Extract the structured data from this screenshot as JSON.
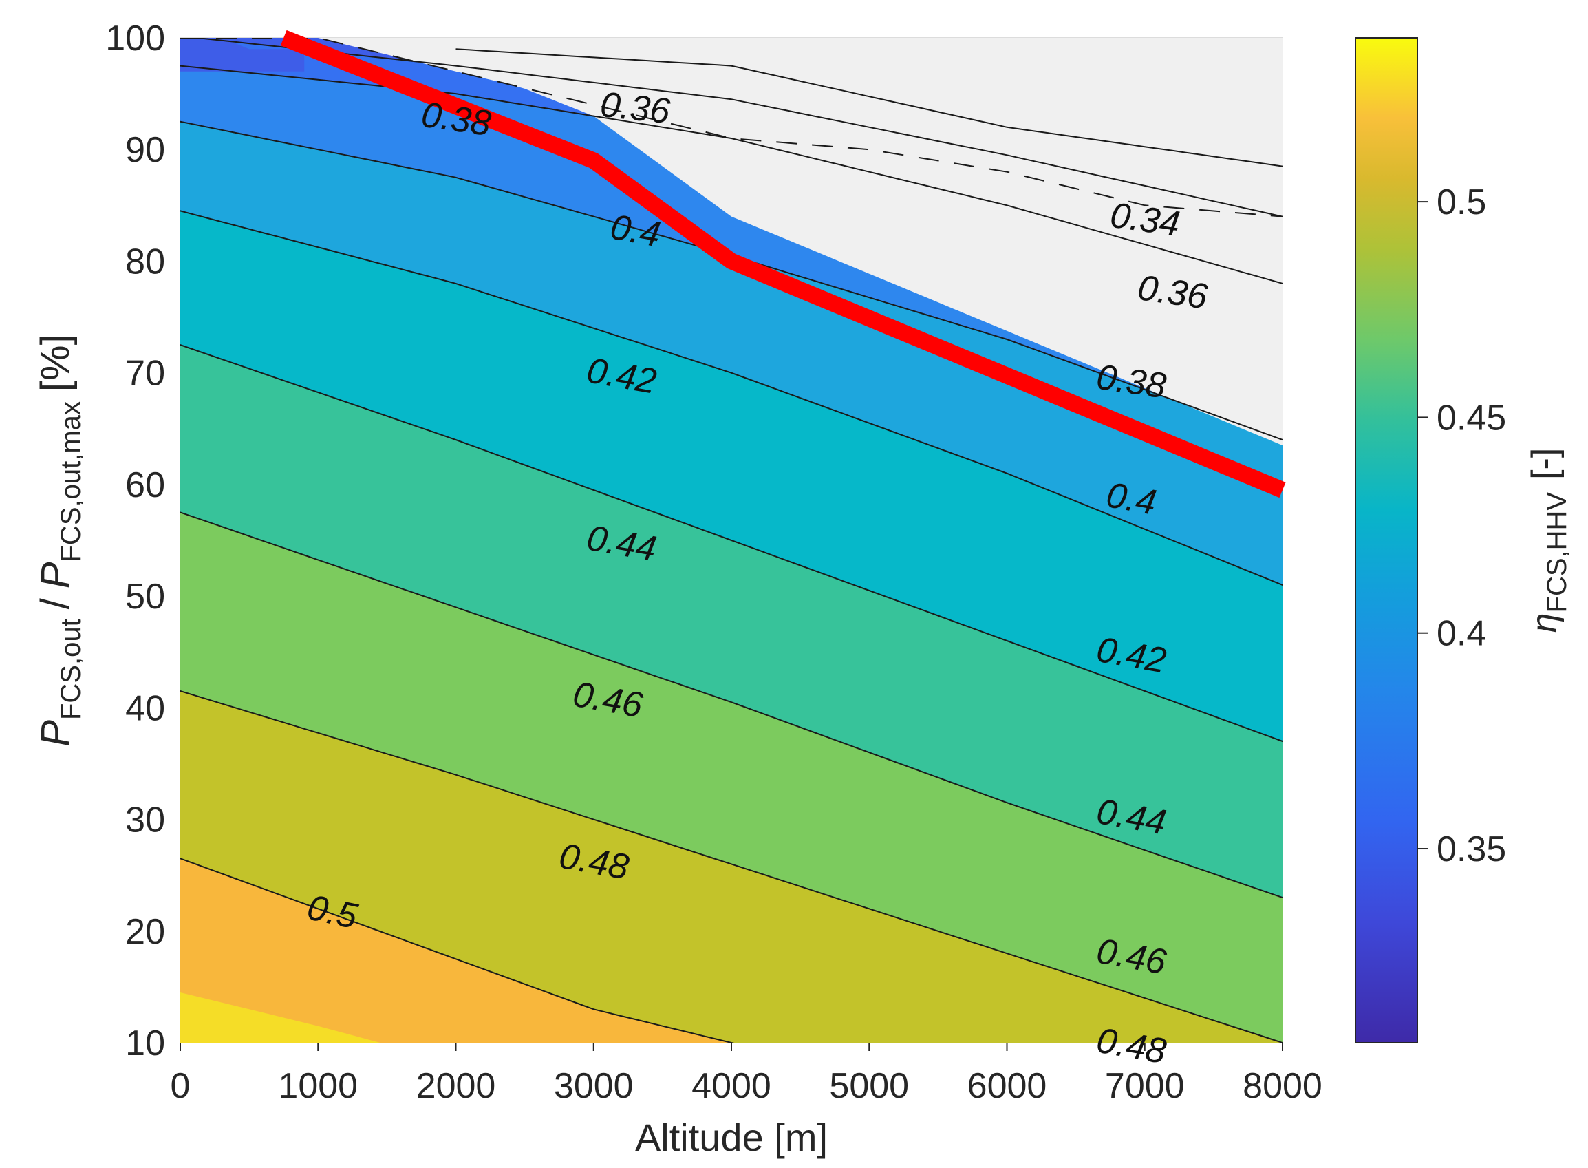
{
  "chart_data": {
    "type": "contour",
    "title": "",
    "xlabel": "Altitude [m]",
    "ylabel": {
      "num_symbol": "P",
      "num_sub": "FCS,out",
      "slash": "/",
      "den_symbol": "P",
      "den_sub": "FCS,out,max",
      "unit": "[%]"
    },
    "xlim": [
      0,
      8000
    ],
    "ylim": [
      10,
      100
    ],
    "x_ticks": [
      "0",
      "1000",
      "2000",
      "3000",
      "4000",
      "5000",
      "6000",
      "7000",
      "8000"
    ],
    "y_ticks": [
      "10",
      "20",
      "30",
      "40",
      "50",
      "60",
      "70",
      "80",
      "90",
      "100"
    ],
    "grid": true,
    "levels": [
      0.34,
      0.36,
      0.38,
      0.4,
      0.42,
      0.44,
      0.46,
      0.48,
      0.5
    ],
    "contour_lines": [
      {
        "level": "0.5",
        "x": [
          0,
          1000,
          2000,
          3000,
          4000
        ],
        "y": [
          26.5,
          22,
          17.5,
          13,
          10
        ]
      },
      {
        "level": "0.48",
        "x": [
          0,
          2000,
          4000,
          6000,
          8000
        ],
        "y": [
          41.5,
          34,
          26,
          18,
          10
        ]
      },
      {
        "level": "0.46",
        "x": [
          0,
          2000,
          4000,
          6000,
          8000
        ],
        "y": [
          57.5,
          49,
          40.5,
          31.5,
          23
        ]
      },
      {
        "level": "0.44",
        "x": [
          0,
          2000,
          4000,
          6000,
          8000
        ],
        "y": [
          72.5,
          64,
          55,
          46,
          37
        ]
      },
      {
        "level": "0.42",
        "x": [
          0,
          2000,
          4000,
          6000,
          8000
        ],
        "y": [
          84.5,
          78,
          70,
          61,
          51
        ]
      },
      {
        "level": "0.4",
        "x": [
          0,
          2000,
          4000,
          6000,
          8000
        ],
        "y": [
          92.5,
          87.5,
          80.5,
          73,
          64
        ]
      },
      {
        "level": "0.38",
        "x": [
          0,
          2000,
          4000,
          6000,
          8000
        ],
        "y": [
          97.5,
          95,
          91,
          85,
          78
        ]
      },
      {
        "level": "0.36",
        "x": [
          500,
          2000,
          4000,
          6000,
          8000
        ],
        "y": [
          99.5,
          97.5,
          94.5,
          89.5,
          84
        ]
      }
    ],
    "contour_labels": [
      {
        "text": "0.5",
        "x": 1100,
        "y": 21.5,
        "angle": 12
      },
      {
        "text": "0.48",
        "x": 3000,
        "y": 26,
        "angle": 10
      },
      {
        "text": "0.46",
        "x": 3100,
        "y": 40.5,
        "angle": 10
      },
      {
        "text": "0.44",
        "x": 3200,
        "y": 54.5,
        "angle": 10
      },
      {
        "text": "0.42",
        "x": 3200,
        "y": 69.5,
        "angle": 10
      },
      {
        "text": "0.4",
        "x": 3300,
        "y": 82.5,
        "angle": 10
      },
      {
        "text": "0.38",
        "x": 2000,
        "y": 92.5,
        "angle": 8
      },
      {
        "text": "0.36",
        "x": 3300,
        "y": 93.5,
        "angle": 6
      },
      {
        "text": "0.34",
        "x": 7000,
        "y": 83.5,
        "angle": 8
      },
      {
        "text": "0.36",
        "x": 7200,
        "y": 77,
        "angle": 8
      },
      {
        "text": "0.38",
        "x": 6900,
        "y": 69,
        "angle": 8
      },
      {
        "text": "0.4",
        "x": 6900,
        "y": 58.5,
        "angle": 10
      },
      {
        "text": "0.42",
        "x": 6900,
        "y": 44.5,
        "angle": 10
      },
      {
        "text": "0.44",
        "x": 6900,
        "y": 30,
        "angle": 10
      },
      {
        "text": "0.46",
        "x": 6900,
        "y": 17.5,
        "angle": 10
      },
      {
        "text": "0.48",
        "x": 6900,
        "y": 9.5,
        "angle": 10
      }
    ],
    "max_power_limit": {
      "color": "#ff0000",
      "x": [
        750,
        3000,
        4000,
        8000
      ],
      "y": [
        100,
        89,
        80,
        59.5
      ]
    },
    "region_boundary": {
      "x": [
        0,
        1000,
        2000,
        3000,
        4000,
        5000,
        6000,
        7000,
        8000
      ],
      "y": [
        100,
        100,
        97,
        94,
        91,
        90,
        88,
        85,
        84
      ]
    },
    "colorbar": {
      "label_symbol": "η",
      "label_sub": "FCS,HHV",
      "label_unit": "[-]",
      "range": [
        0.305,
        0.538
      ],
      "ticks": [
        "0.35",
        "0.4",
        "0.45",
        "0.5"
      ],
      "tick_values": [
        0.35,
        0.4,
        0.45,
        0.5
      ]
    },
    "colors": {
      "0.32": "#3e30c6",
      "0.34": "#3e5de8",
      "0.36": "#3571f2",
      "0.38": "#2e87ee",
      "0.40": "#1ea6dd",
      "0.42": "#06b8c9",
      "0.44": "#37c39a",
      "0.46": "#7ccb5e",
      "0.48": "#c3c32a",
      "0.50": "#f8b73c",
      "0.52": "#f5dd27",
      "0.54": "#f9fb0e",
      "infeasible": "#f0f0f0"
    }
  }
}
